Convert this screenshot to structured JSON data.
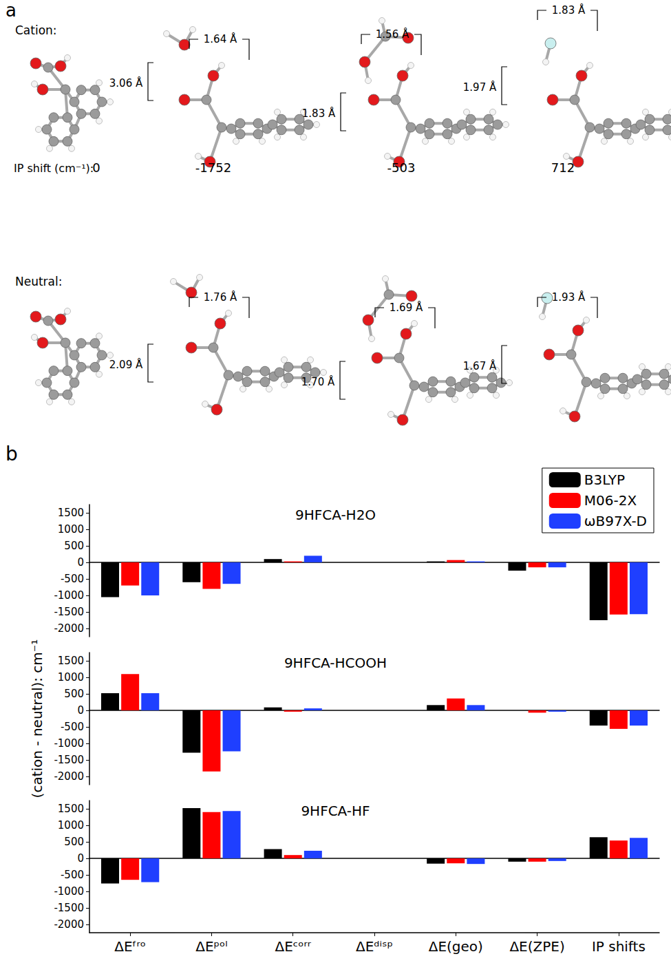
{
  "panel_a": {
    "label": "a",
    "cation": {
      "title": "Cation:",
      "ip_shift_label": "IP shift (cm⁻¹):",
      "ip_shifts": [
        0,
        -1752,
        -503,
        712
      ],
      "distances": [
        [
          "3.06 Å",
          "1.64 Å"
        ],
        [
          "1.83 Å",
          "1.56 Å"
        ],
        [
          "1.97 Å",
          "1.83 Å"
        ]
      ]
    },
    "neutral": {
      "title": "Neutral:",
      "distances": [
        [
          "2.09 Å",
          "1.76 Å"
        ],
        [
          "1.70 Å",
          "1.69 Å"
        ],
        [
          "1.67 Å",
          "1.93 Å"
        ]
      ]
    }
  },
  "panel_b": {
    "label": "b",
    "ylabel": "(cation - neutral): cm⁻¹"
  },
  "chart_data": [
    {
      "type": "bar",
      "title": "9HFCA-H2O",
      "categories": [
        "ΔEᶠʳᵒ",
        "ΔEᵖᵒˡ",
        "ΔEᶜᵒʳʳ",
        "ΔEᵈⁱˢᵖ",
        "ΔE(geo)",
        "ΔE(ZPE)",
        "IP shifts"
      ],
      "series": [
        {
          "name": "B3LYP",
          "color": "#000000",
          "values": [
            -1050,
            -600,
            100,
            0,
            30,
            -250,
            -1750
          ]
        },
        {
          "name": "M06-2X",
          "color": "#ff0000",
          "values": [
            -700,
            -800,
            30,
            0,
            70,
            -150,
            -1580
          ]
        },
        {
          "name": "ωB97X-D",
          "color": "#1f3fff",
          "values": [
            -1000,
            -650,
            200,
            0,
            30,
            -150,
            -1570
          ]
        }
      ],
      "ylim": [
        -2250,
        1750
      ],
      "yticks": [
        -2000,
        -1500,
        -1000,
        -500,
        0,
        500,
        1000,
        1500
      ],
      "grid": false,
      "legend": "upper right",
      "tick_labels": "y"
    },
    {
      "type": "bar",
      "title": "9HFCA-HCOOH",
      "categories": [
        "ΔEᶠʳᵒ",
        "ΔEᵖᵒˡ",
        "ΔEᶜᵒʳʳ",
        "ΔEᵈⁱˢᵖ",
        "ΔE(geo)",
        "ΔE(ZPE)",
        "IP shifts"
      ],
      "series": [
        {
          "name": "B3LYP",
          "color": "#000000",
          "values": [
            520,
            -1280,
            90,
            0,
            160,
            0,
            -460
          ]
        },
        {
          "name": "M06-2X",
          "color": "#ff0000",
          "values": [
            1100,
            -1850,
            -40,
            0,
            360,
            -70,
            -560
          ]
        },
        {
          "name": "ωB97X-D",
          "color": "#1f3fff",
          "values": [
            520,
            -1240,
            60,
            0,
            160,
            -40,
            -460
          ]
        }
      ],
      "ylim": [
        -2250,
        1750
      ],
      "yticks": [
        -2000,
        -1500,
        -1000,
        -500,
        0,
        500,
        1000,
        1500
      ],
      "grid": false,
      "tick_labels": "y"
    },
    {
      "type": "bar",
      "title": "9HFCA-HF",
      "categories": [
        "ΔEᶠʳᵒ",
        "ΔEᵖᵒˡ",
        "ΔEᶜᵒʳʳ",
        "ΔEᵈⁱˢᵖ",
        "ΔE(geo)",
        "ΔE(ZPE)",
        "IP shifts"
      ],
      "series": [
        {
          "name": "B3LYP",
          "color": "#000000",
          "values": [
            -760,
            1520,
            280,
            0,
            -160,
            -100,
            640
          ]
        },
        {
          "name": "M06-2X",
          "color": "#ff0000",
          "values": [
            -650,
            1400,
            100,
            0,
            -150,
            -100,
            540
          ]
        },
        {
          "name": "ωB97X-D",
          "color": "#1f3fff",
          "values": [
            -720,
            1430,
            230,
            0,
            -170,
            -80,
            620
          ]
        }
      ],
      "ylim": [
        -2250,
        1750
      ],
      "yticks": [
        -2000,
        -1500,
        -1000,
        -500,
        0,
        500,
        1000,
        1500
      ],
      "grid": false
    }
  ]
}
